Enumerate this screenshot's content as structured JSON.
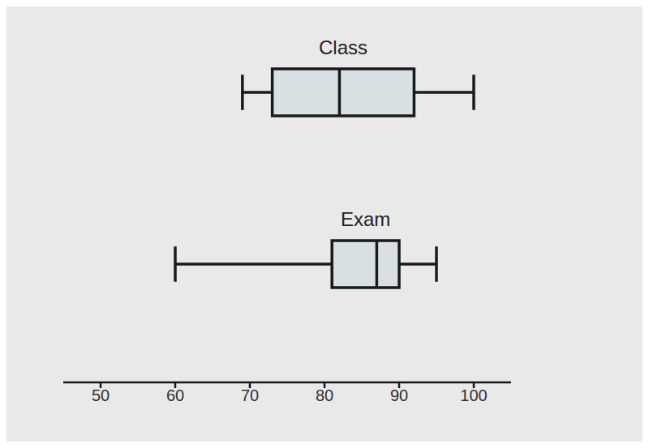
{
  "chart_data": {
    "type": "box",
    "series": [
      {
        "name": "Class",
        "min": 69,
        "q1": 73,
        "median": 82,
        "q3": 92,
        "max": 100
      },
      {
        "name": "Exam",
        "min": 60,
        "q1": 81,
        "median": 87,
        "q3": 90,
        "max": 95
      }
    ],
    "xlim": [
      45,
      105
    ],
    "xticks": [
      50,
      60,
      70,
      80,
      90,
      100
    ],
    "color": "#d8e0e4"
  }
}
